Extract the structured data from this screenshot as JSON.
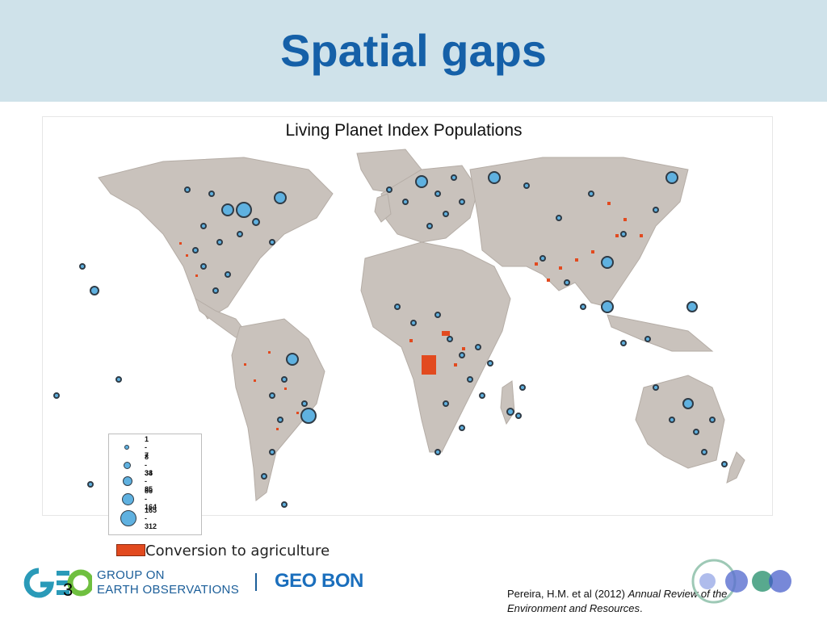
{
  "slide": {
    "title": "Spatial gaps",
    "map_title": "Living Planet Index Populations",
    "slide_number": "3"
  },
  "legend": {
    "items": [
      {
        "label": "1 - 7"
      },
      {
        "label": "8 - 33"
      },
      {
        "label": "34 - 85"
      },
      {
        "label": "86 - 164"
      },
      {
        "label": "165 - 312"
      }
    ],
    "conversion_label": "Conversion to agriculture"
  },
  "footer": {
    "geo_line1": "GROUP ON",
    "geo_line2": "EARTH OBSERVATIONS",
    "geobon": "GEO BON",
    "citation_plain": "Pereira, H.M. et al (2012) ",
    "citation_italic": "Annual Review of the Environment and Resources",
    "citation_end": "."
  },
  "colors": {
    "header_bg": "#cfe2ea",
    "title": "#1560a8",
    "land": "#c9c2bc",
    "dot_fill": "#5fb1e0",
    "dot_outline": "#2f3b46",
    "agriculture": "#e24a1f"
  }
}
